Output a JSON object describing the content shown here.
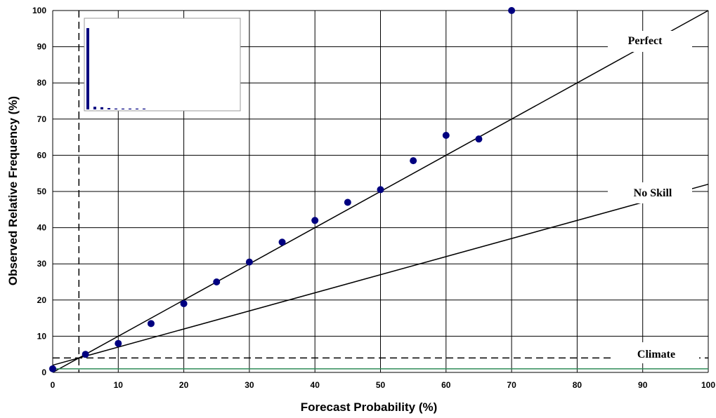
{
  "chart_data": {
    "type": "scatter",
    "xlabel": "Forecast Probability (%)",
    "ylabel": "Observed Relative Frequency (%)",
    "xlim": [
      0,
      100
    ],
    "ylim": [
      0,
      100
    ],
    "x_ticks": [
      "0",
      "10",
      "20",
      "30",
      "40",
      "50",
      "60",
      "70",
      "80",
      "90",
      "100"
    ],
    "y_ticks": [
      "0",
      "10",
      "20",
      "30",
      "40",
      "50",
      "60",
      "70",
      "80",
      "90",
      "100"
    ],
    "grid": true,
    "points": {
      "x": [
        0,
        5,
        10,
        15,
        20,
        25,
        30,
        35,
        40,
        45,
        50,
        55,
        60,
        65,
        70
      ],
      "y": [
        1,
        5,
        8,
        13.5,
        19,
        25,
        30.5,
        36,
        42,
        47,
        50.5,
        58.5,
        65.5,
        64.5,
        100
      ]
    },
    "perfect_line": {
      "label": "Perfect",
      "x": [
        0,
        100
      ],
      "y": [
        0,
        100
      ]
    },
    "no_skill_line": {
      "label": "No Skill",
      "x": [
        0,
        100
      ],
      "y": [
        2,
        52
      ]
    },
    "climate_line": {
      "label": "Climate",
      "value": 4
    },
    "climate_vertical_line": 4,
    "bottom_line": 1,
    "colors": {
      "points": "#000080",
      "bottom_line": "#2e8b57",
      "lines": "#000000"
    },
    "inset_histogram": {
      "type": "bar",
      "values": [
        92,
        3,
        2.5,
        1.5,
        1,
        0.5,
        0.4,
        0.3,
        0.2
      ]
    }
  }
}
